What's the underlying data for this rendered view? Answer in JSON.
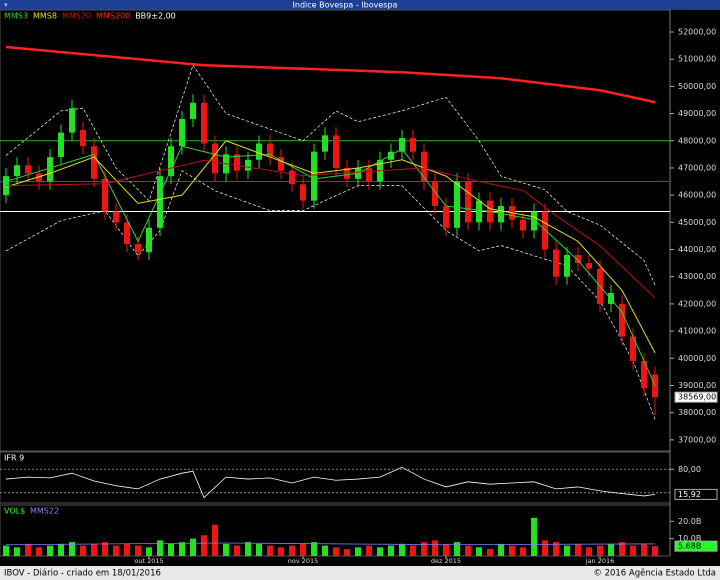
{
  "header": {
    "title": "Indice Bovespa - Ibovespa"
  },
  "footer": {
    "left": "IBOV - Diário - criado em 18/01/2016",
    "right": "© 2016 Agência Estado Ltda"
  },
  "chart_data": [
    {
      "type": "candlestick",
      "up_color": "#22e022",
      "down_color": "#ee1515",
      "ylim": [
        36590,
        52810
      ],
      "yticks": [
        {
          "value": 37000,
          "label": "37000,00"
        },
        {
          "value": 38000,
          "label": "38000,00"
        },
        {
          "value": 39000,
          "label": "39000,00"
        },
        {
          "value": 40000,
          "label": "40000,00"
        },
        {
          "value": 41000,
          "label": "41000,00"
        },
        {
          "value": 42000,
          "label": "42000,00"
        },
        {
          "value": 43000,
          "label": "43000,00"
        },
        {
          "value": 44000,
          "label": "44000,00"
        },
        {
          "value": 45000,
          "label": "45000,00"
        },
        {
          "value": 46000,
          "label": "46000,00"
        },
        {
          "value": 47000,
          "label": "47000,00"
        },
        {
          "value": 48000,
          "label": "48000,00"
        },
        {
          "value": 49000,
          "label": "49000,00"
        },
        {
          "value": 50000,
          "label": "50000,00"
        },
        {
          "value": 51000,
          "label": "51000,00"
        },
        {
          "value": 52000,
          "label": "52000,00"
        }
      ],
      "xticks": [
        {
          "value": 13,
          "label": "out 2015"
        },
        {
          "value": 27,
          "label": "nov 2015"
        },
        {
          "value": 40,
          "label": "dez 2015"
        },
        {
          "value": 54,
          "label": "jan 2016"
        }
      ],
      "open": [
        46000,
        46700,
        47100,
        46800,
        46500,
        47400,
        48300,
        48400,
        47800,
        46600,
        45400,
        45000,
        44200,
        43900,
        44800,
        46700,
        47800,
        48800,
        49400,
        47900,
        46800,
        47500,
        46900,
        47300,
        47900,
        47400,
        46900,
        46400,
        45800,
        47600,
        48200,
        47000,
        46600,
        47000,
        46500,
        47300,
        47600,
        48100,
        47600,
        46500,
        45600,
        44800,
        46500,
        45000,
        45800,
        45000,
        45600,
        45100,
        44700,
        45400,
        44000,
        43000,
        43800,
        43500,
        43300,
        42000,
        42000,
        40800,
        39900,
        39400
      ],
      "high": [
        47000,
        47400,
        47400,
        47100,
        47700,
        48600,
        49500,
        48700,
        48100,
        46900,
        45700,
        45300,
        44500,
        45100,
        47000,
        48100,
        49100,
        49700,
        49700,
        48200,
        47800,
        47800,
        47600,
        48200,
        48200,
        47700,
        47200,
        46700,
        47900,
        48500,
        48500,
        47300,
        47300,
        47300,
        47600,
        47900,
        48400,
        48400,
        47900,
        46800,
        45900,
        46800,
        46800,
        46100,
        46100,
        45900,
        45900,
        45400,
        45700,
        45700,
        44300,
        44100,
        44100,
        43800,
        43600,
        42700,
        42300,
        41100,
        40200,
        39700
      ],
      "low": [
        45700,
        46400,
        46500,
        46200,
        46200,
        47100,
        48000,
        47500,
        46300,
        45100,
        44700,
        43900,
        43600,
        43600,
        44500,
        46400,
        47500,
        48500,
        47600,
        46500,
        46500,
        46600,
        46600,
        47000,
        47100,
        46600,
        46100,
        45500,
        45500,
        47300,
        46700,
        46300,
        46300,
        46200,
        46200,
        47000,
        47300,
        47300,
        46200,
        45300,
        44500,
        44500,
        44700,
        44700,
        44700,
        44700,
        44800,
        44400,
        44400,
        43700,
        42700,
        42700,
        43200,
        43000,
        41700,
        41700,
        40500,
        39600,
        38600,
        37900
      ],
      "close": [
        46700,
        47100,
        46800,
        46500,
        47400,
        48300,
        49200,
        47800,
        46600,
        45400,
        45000,
        44200,
        43900,
        44800,
        46700,
        47800,
        48800,
        49400,
        47900,
        46800,
        47500,
        46900,
        47300,
        47900,
        47400,
        46900,
        46400,
        45800,
        47600,
        48200,
        47000,
        46600,
        47000,
        46500,
        47300,
        47600,
        48100,
        47600,
        46500,
        45600,
        44800,
        46500,
        45000,
        45800,
        45000,
        45600,
        45100,
        44700,
        45400,
        44000,
        43000,
        43800,
        43500,
        43300,
        42000,
        42400,
        40800,
        39900,
        38900,
        38569
      ],
      "last_label": {
        "value": 38569,
        "label": "38569,00"
      },
      "hlines": [
        {
          "value": 48000,
          "color": "#20c020"
        },
        {
          "value": 46500,
          "color": "#e01010"
        },
        {
          "value": 45400,
          "color": "#ffffff"
        }
      ],
      "series": [
        {
          "name": "MMS3",
          "color": "#2fd02f",
          "width": 1,
          "x": [
            0,
            4,
            8,
            12,
            16,
            20,
            24,
            28,
            32,
            36,
            40,
            44,
            48,
            52,
            56,
            59
          ],
          "values": [
            46500,
            47000,
            47500,
            44300,
            47800,
            47400,
            47500,
            46600,
            46800,
            47700,
            45600,
            45400,
            45100,
            43600,
            41700,
            39000
          ]
        },
        {
          "name": "MMS8",
          "color": "#e0e020",
          "width": 1,
          "x": [
            0,
            4,
            8,
            12,
            16,
            20,
            24,
            28,
            32,
            36,
            40,
            44,
            48,
            52,
            56,
            59
          ],
          "values": [
            46300,
            46800,
            47400,
            45700,
            46000,
            48000,
            47400,
            46800,
            47000,
            47300,
            46700,
            45500,
            45200,
            44300,
            42500,
            40200
          ]
        },
        {
          "name": "MMS20",
          "color": "#c01010",
          "width": 1,
          "x": [
            0,
            9,
            18,
            27,
            38,
            43,
            47,
            50,
            54,
            59
          ],
          "values": [
            46350,
            46420,
            47280,
            46720,
            47000,
            46500,
            46170,
            45250,
            44140,
            42220
          ]
        },
        {
          "name": "MMS200",
          "color": "#ff2020",
          "width": 2.5,
          "x": [
            0,
            18,
            36,
            45,
            54,
            59
          ],
          "values": [
            51450,
            50780,
            50520,
            50300,
            49860,
            49420
          ]
        }
      ],
      "bands": {
        "name": "BB9±2,00",
        "color": "#ffffff",
        "upper_x": [
          0,
          5,
          7,
          10,
          13,
          17,
          20,
          27,
          30,
          32,
          36,
          40,
          43,
          45,
          49,
          51,
          54,
          58,
          59
        ],
        "upper": [
          47460,
          49100,
          49200,
          47000,
          45800,
          50780,
          49000,
          48000,
          49100,
          48700,
          49100,
          49600,
          48000,
          46700,
          46200,
          45400,
          44900,
          43600,
          42700
        ],
        "lower_x": [
          0,
          5,
          9,
          12,
          14,
          16,
          19,
          24,
          27,
          32,
          36,
          40,
          43,
          45,
          48,
          51,
          54,
          57,
          59
        ],
        "lower": [
          43950,
          45060,
          45430,
          43770,
          44700,
          46900,
          46160,
          45430,
          45430,
          46350,
          46350,
          44700,
          43950,
          44150,
          43770,
          43400,
          42110,
          39900,
          37760
        ]
      }
    },
    {
      "type": "line",
      "label": "IFR 9",
      "ylim": [
        -6,
        124
      ],
      "yticks": [
        {
          "value": 80,
          "label": "80,00"
        }
      ],
      "hlines": [
        80,
        20
      ],
      "series": [
        {
          "color": "#ffffff",
          "x": [
            0,
            2,
            4,
            6,
            8,
            10,
            12,
            14,
            16,
            17,
            18,
            20,
            22,
            24,
            26,
            28,
            30,
            32,
            34,
            36,
            38,
            40,
            42,
            44,
            46,
            48,
            50,
            52,
            54,
            56,
            58,
            59
          ],
          "values": [
            55,
            60,
            58,
            70,
            50,
            38,
            30,
            55,
            70,
            75,
            8,
            60,
            55,
            58,
            45,
            60,
            52,
            55,
            60,
            85,
            55,
            35,
            48,
            42,
            45,
            48,
            30,
            35,
            25,
            18,
            12,
            15.92
          ]
        }
      ],
      "last_label": {
        "value": 15.92,
        "label": "15,92"
      }
    },
    {
      "type": "bar",
      "label": "VOL$",
      "ylim": [
        0,
        29.4
      ],
      "yticks": [
        {
          "value": 20,
          "label": "20.0B"
        },
        {
          "value": 10,
          "label": "10.0B"
        }
      ],
      "values": [
        6,
        5,
        7,
        5,
        6,
        7,
        8,
        6,
        7,
        8,
        6,
        7,
        6,
        5,
        9,
        7,
        8,
        10,
        12,
        18,
        7,
        6,
        8,
        7,
        6,
        5,
        6,
        7,
        8,
        6,
        5,
        4,
        5,
        6,
        5,
        6,
        7,
        6,
        8,
        9,
        7,
        8,
        6,
        5,
        4,
        7,
        6,
        5,
        22,
        9,
        8,
        6,
        7,
        5,
        6,
        7,
        8,
        6,
        7,
        5.68
      ],
      "series": [
        {
          "name": "MMS22",
          "color": "#8080ff",
          "x": [
            0,
            20,
            40,
            59
          ],
          "values": [
            6.5,
            7.5,
            6.5,
            7
          ]
        }
      ],
      "last_label": {
        "value": 5.68,
        "label": "5.68B"
      }
    }
  ]
}
